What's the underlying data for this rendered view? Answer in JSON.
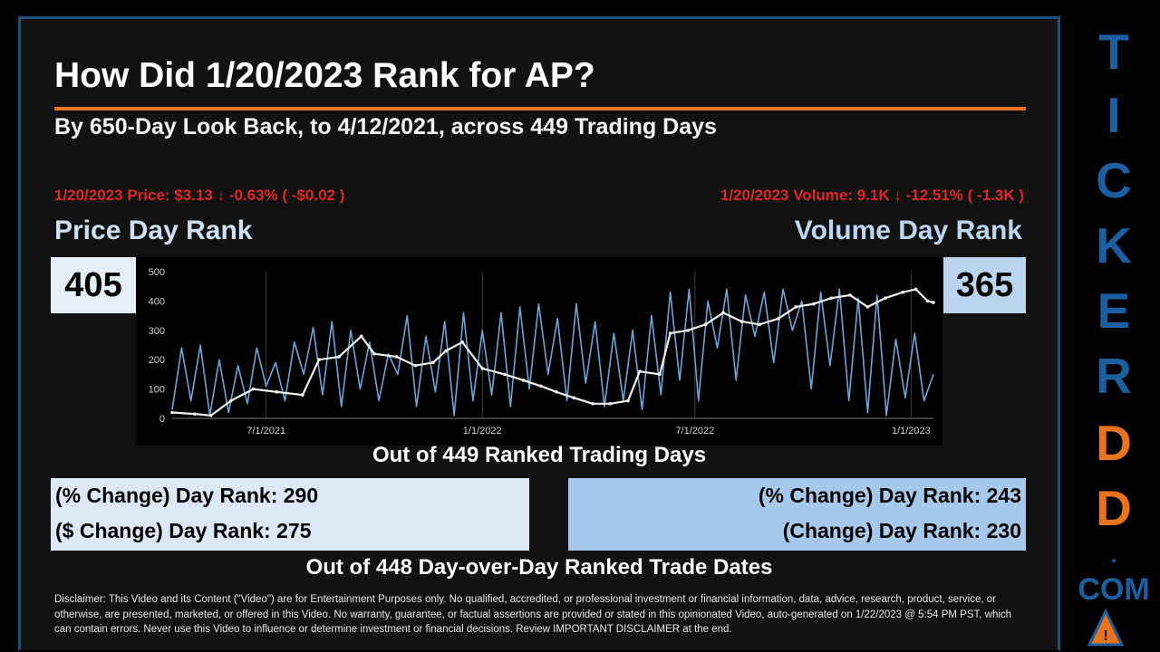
{
  "header": {
    "title": "How Did 1/20/2023 Rank for AP?",
    "subtitle": "By 650-Day Look Back, to 4/12/2021, across 449 Trading Days"
  },
  "price_info": "1/20/2023 Price: $3.13 ↓ -0.63% ( -$0.02 )",
  "volume_info": "1/20/2023 Volume: 9.1K ↓ -12.51% ( -1.3K )",
  "price_rank": {
    "label": "Price Day Rank",
    "value": "405"
  },
  "volume_rank": {
    "label": "Volume Day Rank",
    "value": "365"
  },
  "out_of_days": "Out of 449 Ranked Trading Days",
  "price_changes": {
    "pct": "(% Change) Day Rank: 290",
    "dollar": "($ Change) Day Rank: 275"
  },
  "volume_changes": {
    "pct": "(% Change) Day Rank: 243",
    "change": "(Change) Day Rank: 230"
  },
  "out_of_dates": "Out of 448 Day-over-Day Ranked Trade Dates",
  "disclaimer": "Disclaimer: This Video and its Content (\"Video\") are for Entertainment Purposes only. No qualified, accredited, or professional investment or financial information, data, advice, research, product, service, or otherwise, are presented, marketed, or offered in this Video. No warranty, guarantee, or factual assertions are provided or stated in this opinionated Video, auto-generated on 1/22/2023 @ 5:54 PM PST, which can contain errors. Never use this Video to influence or determine investment or financial decisions. Review IMPORTANT DISCLAIMER at the end.",
  "side_brand": {
    "letters": [
      "T",
      "I",
      "C",
      "K",
      "E",
      "R",
      "D",
      "D"
    ],
    "letter_colors": [
      "#1c5fa0",
      "#1c5fa0",
      "#1c5fa0",
      "#1c5fa0",
      "#1c5fa0",
      "#1c5fa0",
      "#e8731f",
      "#e8731f"
    ],
    "dot": ".",
    "com": "COM"
  },
  "chart_data": {
    "type": "line",
    "x_ticks": [
      "7/1/2021",
      "1/1/2022",
      "7/1/2022",
      "1/1/2023"
    ],
    "y_ticks": [
      "0",
      "100",
      "200",
      "300",
      "400",
      "500"
    ],
    "ylim": [
      0,
      500
    ],
    "x_start": "2021-04-12",
    "x_end": "2023-01-20",
    "grid": "vertical",
    "series": [
      {
        "color": "#6aa6da",
        "points": [
          [
            "2021-04-12",
            30
          ],
          [
            "2021-04-20",
            240
          ],
          [
            "2021-04-28",
            60
          ],
          [
            "2021-05-06",
            250
          ],
          [
            "2021-05-14",
            10
          ],
          [
            "2021-05-22",
            200
          ],
          [
            "2021-05-30",
            20
          ],
          [
            "2021-06-07",
            180
          ],
          [
            "2021-06-15",
            50
          ],
          [
            "2021-06-23",
            240
          ],
          [
            "2021-07-01",
            110
          ],
          [
            "2021-07-09",
            190
          ],
          [
            "2021-07-17",
            60
          ],
          [
            "2021-07-25",
            260
          ],
          [
            "2021-08-02",
            150
          ],
          [
            "2021-08-10",
            310
          ],
          [
            "2021-08-18",
            80
          ],
          [
            "2021-08-26",
            330
          ],
          [
            "2021-09-03",
            40
          ],
          [
            "2021-09-11",
            300
          ],
          [
            "2021-09-19",
            100
          ],
          [
            "2021-09-27",
            260
          ],
          [
            "2021-10-05",
            60
          ],
          [
            "2021-10-13",
            220
          ],
          [
            "2021-10-21",
            150
          ],
          [
            "2021-10-29",
            350
          ],
          [
            "2021-11-06",
            40
          ],
          [
            "2021-11-14",
            280
          ],
          [
            "2021-11-22",
            90
          ],
          [
            "2021-11-30",
            330
          ],
          [
            "2021-12-08",
            10
          ],
          [
            "2021-12-16",
            360
          ],
          [
            "2021-12-24",
            60
          ],
          [
            "2022-01-01",
            300
          ],
          [
            "2022-01-09",
            80
          ],
          [
            "2022-01-17",
            360
          ],
          [
            "2022-01-25",
            40
          ],
          [
            "2022-02-02",
            380
          ],
          [
            "2022-02-10",
            100
          ],
          [
            "2022-02-18",
            390
          ],
          [
            "2022-02-26",
            150
          ],
          [
            "2022-03-06",
            340
          ],
          [
            "2022-03-14",
            60
          ],
          [
            "2022-03-22",
            390
          ],
          [
            "2022-03-30",
            120
          ],
          [
            "2022-04-07",
            330
          ],
          [
            "2022-04-15",
            40
          ],
          [
            "2022-04-23",
            290
          ],
          [
            "2022-05-01",
            60
          ],
          [
            "2022-05-09",
            300
          ],
          [
            "2022-05-17",
            30
          ],
          [
            "2022-05-25",
            350
          ],
          [
            "2022-06-02",
            80
          ],
          [
            "2022-06-10",
            430
          ],
          [
            "2022-06-18",
            130
          ],
          [
            "2022-06-26",
            440
          ],
          [
            "2022-07-04",
            60
          ],
          [
            "2022-07-12",
            400
          ],
          [
            "2022-07-20",
            240
          ],
          [
            "2022-07-28",
            440
          ],
          [
            "2022-08-05",
            130
          ],
          [
            "2022-08-13",
            420
          ],
          [
            "2022-08-21",
            280
          ],
          [
            "2022-08-29",
            430
          ],
          [
            "2022-09-06",
            190
          ],
          [
            "2022-09-14",
            440
          ],
          [
            "2022-09-22",
            300
          ],
          [
            "2022-09-30",
            400
          ],
          [
            "2022-10-08",
            100
          ],
          [
            "2022-10-16",
            430
          ],
          [
            "2022-10-24",
            180
          ],
          [
            "2022-11-01",
            440
          ],
          [
            "2022-11-09",
            60
          ],
          [
            "2022-11-17",
            410
          ],
          [
            "2022-11-25",
            20
          ],
          [
            "2022-12-03",
            420
          ],
          [
            "2022-12-11",
            10
          ],
          [
            "2022-12-19",
            270
          ],
          [
            "2022-12-27",
            70
          ],
          [
            "2023-01-04",
            290
          ],
          [
            "2023-01-12",
            60
          ],
          [
            "2023-01-20",
            150
          ]
        ]
      },
      {
        "color": "#f2f2f2",
        "points": [
          [
            "2021-04-12",
            20
          ],
          [
            "2021-05-01",
            15
          ],
          [
            "2021-05-15",
            10
          ],
          [
            "2021-06-01",
            60
          ],
          [
            "2021-06-20",
            100
          ],
          [
            "2021-07-10",
            90
          ],
          [
            "2021-08-01",
            80
          ],
          [
            "2021-08-15",
            200
          ],
          [
            "2021-09-01",
            210
          ],
          [
            "2021-09-20",
            280
          ],
          [
            "2021-10-01",
            220
          ],
          [
            "2021-10-20",
            210
          ],
          [
            "2021-11-05",
            180
          ],
          [
            "2021-11-20",
            190
          ],
          [
            "2021-12-01",
            230
          ],
          [
            "2021-12-15",
            260
          ],
          [
            "2022-01-01",
            170
          ],
          [
            "2022-01-20",
            150
          ],
          [
            "2022-02-05",
            130
          ],
          [
            "2022-02-20",
            110
          ],
          [
            "2022-03-05",
            90
          ],
          [
            "2022-03-20",
            70
          ],
          [
            "2022-04-05",
            50
          ],
          [
            "2022-04-20",
            50
          ],
          [
            "2022-05-05",
            60
          ],
          [
            "2022-05-15",
            160
          ],
          [
            "2022-06-01",
            150
          ],
          [
            "2022-06-10",
            290
          ],
          [
            "2022-06-25",
            300
          ],
          [
            "2022-07-10",
            320
          ],
          [
            "2022-07-25",
            360
          ],
          [
            "2022-08-10",
            330
          ],
          [
            "2022-08-25",
            320
          ],
          [
            "2022-09-10",
            340
          ],
          [
            "2022-09-25",
            380
          ],
          [
            "2022-10-10",
            390
          ],
          [
            "2022-10-25",
            410
          ],
          [
            "2022-11-10",
            420
          ],
          [
            "2022-11-25",
            380
          ],
          [
            "2022-12-10",
            410
          ],
          [
            "2022-12-25",
            430
          ],
          [
            "2023-01-05",
            440
          ],
          [
            "2023-01-15",
            400
          ],
          [
            "2023-01-20",
            395
          ]
        ]
      }
    ]
  }
}
